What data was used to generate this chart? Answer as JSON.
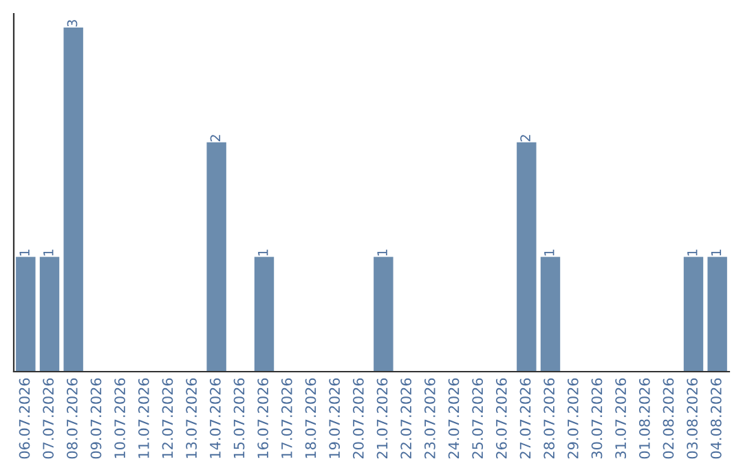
{
  "chart_data": {
    "type": "bar",
    "categories": [
      "06.07.2026",
      "07.07.2026",
      "08.07.2026",
      "09.07.2026",
      "10.07.2026",
      "11.07.2026",
      "12.07.2026",
      "13.07.2026",
      "14.07.2026",
      "15.07.2026",
      "16.07.2026",
      "17.07.2026",
      "18.07.2026",
      "19.07.2026",
      "20.07.2026",
      "21.07.2026",
      "22.07.2026",
      "23.07.2026",
      "24.07.2026",
      "25.07.2026",
      "26.07.2026",
      "27.07.2026",
      "28.07.2026",
      "29.07.2026",
      "30.07.2026",
      "31.07.2026",
      "01.08.2026",
      "02.08.2026",
      "03.08.2026",
      "04.08.2026"
    ],
    "values": [
      1,
      1,
      3,
      0,
      0,
      0,
      0,
      0,
      2,
      0,
      1,
      0,
      0,
      0,
      0,
      1,
      0,
      0,
      0,
      0,
      0,
      2,
      1,
      0,
      0,
      0,
      0,
      0,
      1,
      1
    ],
    "value_labels": [
      "1",
      "1",
      "3",
      null,
      null,
      null,
      null,
      null,
      "2",
      null,
      "1",
      null,
      null,
      null,
      null,
      "1",
      null,
      null,
      null,
      null,
      null,
      "2",
      "1",
      null,
      null,
      null,
      null,
      null,
      "1",
      "1"
    ],
    "color": "#6b8cae",
    "ylim": [
      0,
      3.0
    ],
    "tick_labels": "x",
    "grid": false,
    "legend": false
  }
}
